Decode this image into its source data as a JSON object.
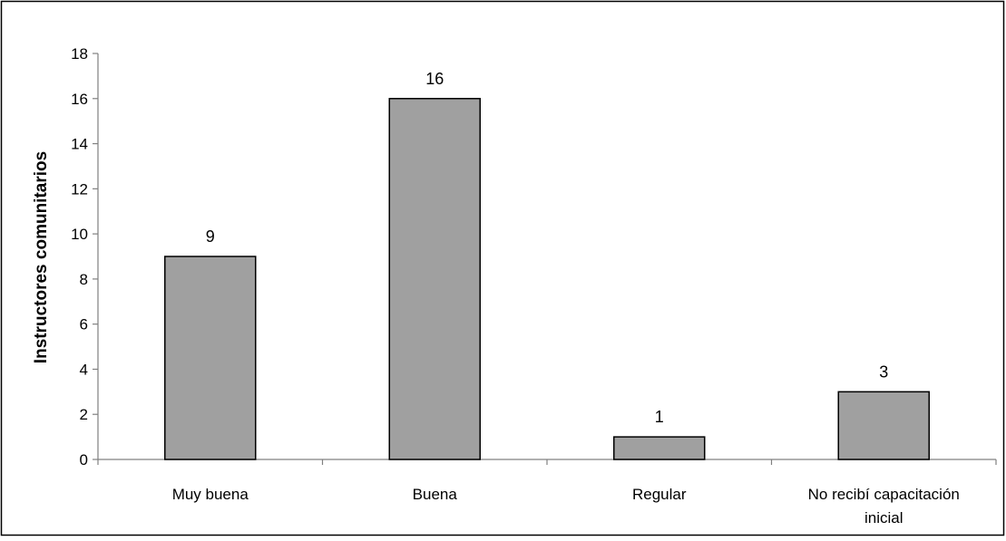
{
  "chart_data": {
    "type": "bar",
    "title": "",
    "xlabel": "",
    "ylabel": "Instructores comunitarios",
    "categories": [
      [
        "Muy buena"
      ],
      [
        "Buena"
      ],
      [
        "Regular"
      ],
      [
        "No recibí capacitación",
        "inicial"
      ]
    ],
    "values": [
      9,
      16,
      1,
      3
    ],
    "ylim": [
      0,
      18
    ],
    "yticks": [
      0,
      2,
      4,
      6,
      8,
      10,
      12,
      14,
      16,
      18
    ],
    "grid": false,
    "legend": "none",
    "data_labels": true
  },
  "colors": {
    "bar_fill": "#a0a0a0",
    "bar_stroke": "#000000",
    "axis": "#808080",
    "frame": "#000000"
  }
}
